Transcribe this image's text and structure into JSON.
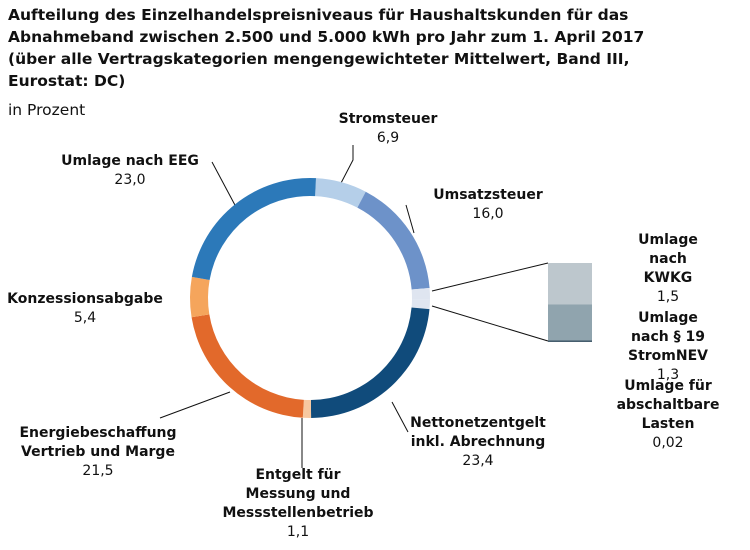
{
  "chart_data": [
    {
      "type": "pie",
      "title": "Aufteilung des Einzelhandelspreisniveaus für Haushaltskunden für das\nAbnahmeband zwischen 2.500 und 5.000 kWh  pro Jahr  zum 1. April 2017\n(über alle Vertragskategorien mengengewichteter Mittelwert, Band III,\nEurostat: DC)",
      "subtitle": "in Prozent",
      "categories": [
        "Stromsteuer",
        "Umsatzsteuer",
        "Nettonetzentgelt\ninkl. Abrechnung",
        "Entgelt für\nMessung und\nMessstellenbetrieb",
        "Energiebeschaffung\nVertrieb und Marge",
        "Konzessionsabgabe",
        "Umlage nach EEG"
      ],
      "values": [
        6.9,
        16.0,
        23.4,
        1.1,
        21.5,
        5.4,
        23.0
      ],
      "value_labels": [
        "6,9",
        "16,0",
        "23,4",
        "1,1",
        "21,5",
        "5,4",
        "23,0"
      ],
      "colors": [
        "#b5cfe9",
        "#6d92c9",
        "#104b7b",
        "#f7c8a0",
        "#e2692b",
        "#f5a55c",
        "#2c79b9"
      ]
    },
    {
      "type": "bar",
      "categories": [
        "Umlage nach\nKWKG",
        "Umlage nach § 19\nStromNEV",
        "Umlage für\nabschaltbare\nLasten"
      ],
      "values": [
        1.5,
        1.3,
        0.02
      ],
      "value_labels": [
        "1,5",
        "1,3",
        "0,02"
      ],
      "colors": [
        "#bdc7cd",
        "#90a4ae",
        "#3c5566"
      ],
      "pie_color": "#dfe5f0"
    }
  ]
}
